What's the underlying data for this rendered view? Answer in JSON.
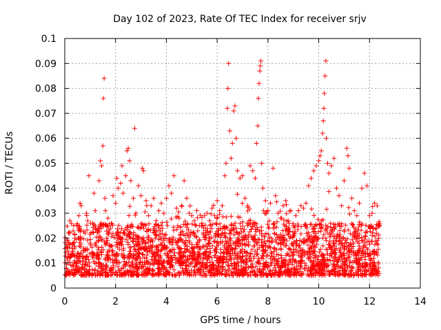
{
  "chart_data": {
    "type": "scatter",
    "title": "Day 102 of 2023, Rate Of TEC Index for receiver srjv",
    "xlabel": "GPS time / hours",
    "ylabel": "ROTI / TECUs",
    "xlim": [
      0,
      14
    ],
    "ylim": [
      0,
      0.1
    ],
    "xticks": [
      "0",
      "2",
      "4",
      "6",
      "8",
      "10",
      "12",
      "14"
    ],
    "yticks": [
      "0",
      "0.01",
      "0.02",
      "0.03",
      "0.04",
      "0.05",
      "0.06",
      "0.07",
      "0.08",
      "0.09",
      "0.1"
    ],
    "grid": true,
    "marker": "+",
    "color": "#ff0000",
    "x_data_range": [
      0,
      12.4
    ],
    "series": [
      {
        "name": "ROTI",
        "points": [
          [
            0.05,
            0.016
          ],
          [
            0.1,
            0.012
          ],
          [
            0.15,
            0.022
          ],
          [
            0.2,
            0.027
          ],
          [
            0.3,
            0.009
          ],
          [
            0.35,
            0.025
          ],
          [
            0.4,
            0.02
          ],
          [
            0.5,
            0.014
          ],
          [
            0.55,
            0.029
          ],
          [
            0.6,
            0.034
          ],
          [
            0.65,
            0.033
          ],
          [
            0.7,
            0.012
          ],
          [
            0.8,
            0.022
          ],
          [
            0.85,
            0.03
          ],
          [
            0.9,
            0.027
          ],
          [
            0.95,
            0.045
          ],
          [
            1.0,
            0.018
          ],
          [
            1.1,
            0.026
          ],
          [
            1.15,
            0.038
          ],
          [
            1.2,
            0.031
          ],
          [
            1.3,
            0.023
          ],
          [
            1.35,
            0.043
          ],
          [
            1.4,
            0.051
          ],
          [
            1.45,
            0.049
          ],
          [
            1.5,
            0.057
          ],
          [
            1.52,
            0.076
          ],
          [
            1.55,
            0.084
          ],
          [
            1.58,
            0.036
          ],
          [
            1.6,
            0.031
          ],
          [
            1.65,
            0.02
          ],
          [
            1.7,
            0.028
          ],
          [
            1.8,
            0.024
          ],
          [
            1.9,
            0.037
          ],
          [
            2.0,
            0.034
          ],
          [
            2.05,
            0.044
          ],
          [
            2.1,
            0.04
          ],
          [
            2.2,
            0.042
          ],
          [
            2.25,
            0.049
          ],
          [
            2.3,
            0.038
          ],
          [
            2.4,
            0.045
          ],
          [
            2.45,
            0.055
          ],
          [
            2.5,
            0.056
          ],
          [
            2.55,
            0.051
          ],
          [
            2.6,
            0.043
          ],
          [
            2.7,
            0.036
          ],
          [
            2.75,
            0.064
          ],
          [
            2.8,
            0.03
          ],
          [
            2.9,
            0.041
          ],
          [
            3.0,
            0.037
          ],
          [
            3.05,
            0.048
          ],
          [
            3.1,
            0.047
          ],
          [
            3.2,
            0.035
          ],
          [
            3.3,
            0.029
          ],
          [
            3.4,
            0.033
          ],
          [
            3.5,
            0.036
          ],
          [
            3.6,
            0.027
          ],
          [
            3.7,
            0.031
          ],
          [
            3.8,
            0.034
          ],
          [
            3.9,
            0.03
          ],
          [
            4.0,
            0.036
          ],
          [
            4.1,
            0.041
          ],
          [
            4.2,
            0.038
          ],
          [
            4.3,
            0.045
          ],
          [
            4.4,
            0.032
          ],
          [
            4.5,
            0.028
          ],
          [
            4.6,
            0.033
          ],
          [
            4.7,
            0.043
          ],
          [
            4.8,
            0.036
          ],
          [
            4.9,
            0.03
          ],
          [
            5.0,
            0.029
          ],
          [
            5.1,
            0.027
          ],
          [
            5.2,
            0.031
          ],
          [
            5.3,
            0.025
          ],
          [
            5.4,
            0.026
          ],
          [
            5.5,
            0.029
          ],
          [
            5.6,
            0.03
          ],
          [
            5.7,
            0.027
          ],
          [
            5.8,
            0.032
          ],
          [
            5.9,
            0.029
          ],
          [
            6.0,
            0.035
          ],
          [
            6.1,
            0.031
          ],
          [
            6.2,
            0.033
          ],
          [
            6.3,
            0.045
          ],
          [
            6.35,
            0.05
          ],
          [
            6.4,
            0.072
          ],
          [
            6.42,
            0.08
          ],
          [
            6.45,
            0.09
          ],
          [
            6.5,
            0.063
          ],
          [
            6.55,
            0.052
          ],
          [
            6.6,
            0.058
          ],
          [
            6.65,
            0.071
          ],
          [
            6.7,
            0.073
          ],
          [
            6.75,
            0.06
          ],
          [
            6.8,
            0.047
          ],
          [
            6.9,
            0.044
          ],
          [
            7.0,
            0.045
          ],
          [
            7.1,
            0.036
          ],
          [
            7.2,
            0.033
          ],
          [
            7.3,
            0.049
          ],
          [
            7.4,
            0.047
          ],
          [
            7.5,
            0.044
          ],
          [
            7.55,
            0.058
          ],
          [
            7.6,
            0.065
          ],
          [
            7.62,
            0.076
          ],
          [
            7.65,
            0.082
          ],
          [
            7.68,
            0.087
          ],
          [
            7.7,
            0.089
          ],
          [
            7.72,
            0.091
          ],
          [
            7.75,
            0.05
          ],
          [
            7.8,
            0.04
          ],
          [
            7.9,
            0.035
          ],
          [
            8.0,
            0.031
          ],
          [
            8.1,
            0.034
          ],
          [
            8.2,
            0.048
          ],
          [
            8.3,
            0.037
          ],
          [
            8.4,
            0.03
          ],
          [
            8.5,
            0.028
          ],
          [
            8.6,
            0.033
          ],
          [
            8.7,
            0.035
          ],
          [
            8.8,
            0.027
          ],
          [
            8.9,
            0.031
          ],
          [
            9.0,
            0.025
          ],
          [
            9.1,
            0.029
          ],
          [
            9.2,
            0.031
          ],
          [
            9.3,
            0.033
          ],
          [
            9.4,
            0.032
          ],
          [
            9.5,
            0.034
          ],
          [
            9.6,
            0.041
          ],
          [
            9.7,
            0.044
          ],
          [
            9.8,
            0.047
          ],
          [
            9.9,
            0.049
          ],
          [
            10.0,
            0.051
          ],
          [
            10.05,
            0.053
          ],
          [
            10.1,
            0.055
          ],
          [
            10.15,
            0.062
          ],
          [
            10.18,
            0.067
          ],
          [
            10.2,
            0.072
          ],
          [
            10.22,
            0.078
          ],
          [
            10.25,
            0.085
          ],
          [
            10.28,
            0.091
          ],
          [
            10.3,
            0.06
          ],
          [
            10.35,
            0.05
          ],
          [
            10.4,
            0.046
          ],
          [
            10.5,
            0.049
          ],
          [
            10.6,
            0.052
          ],
          [
            10.7,
            0.04
          ],
          [
            10.8,
            0.037
          ],
          [
            10.9,
            0.033
          ],
          [
            11.0,
            0.043
          ],
          [
            11.1,
            0.056
          ],
          [
            11.15,
            0.053
          ],
          [
            11.2,
            0.048
          ],
          [
            11.3,
            0.036
          ],
          [
            11.4,
            0.031
          ],
          [
            11.5,
            0.029
          ],
          [
            11.6,
            0.034
          ],
          [
            11.7,
            0.04
          ],
          [
            11.8,
            0.046
          ],
          [
            11.9,
            0.041
          ],
          [
            12.0,
            0.029
          ],
          [
            12.1,
            0.03
          ],
          [
            12.2,
            0.034
          ],
          [
            12.3,
            0.033
          ],
          [
            12.38,
            0.025
          ]
        ]
      }
    ]
  }
}
